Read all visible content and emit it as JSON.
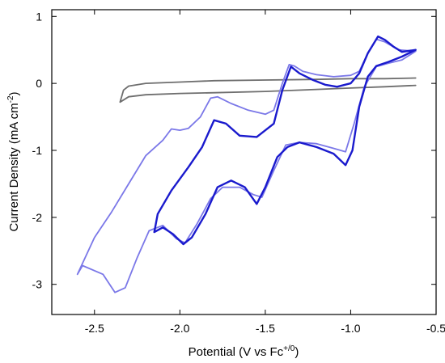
{
  "chart_data": {
    "type": "line",
    "xlabel": {
      "main": "Potential (V vs Fc",
      "sup": "+/0",
      "end": ")"
    },
    "ylabel": {
      "main": "Current Density (mA cm",
      "sup": "-2",
      "end": ")"
    },
    "xlim": [
      -2.75,
      -0.5
    ],
    "ylim": [
      -3.45,
      1.1
    ],
    "x_ticks": [
      -2.5,
      -2.0,
      -1.5,
      -1.0,
      -0.5
    ],
    "x_tick_labels": [
      "-2.5",
      "-2.0",
      "-1.5",
      "-1.0",
      "-0.5"
    ],
    "y_ticks": [
      -3,
      -2,
      -1,
      0,
      1
    ],
    "y_tick_labels": [
      "-3",
      "-2",
      "-1",
      "0",
      "1"
    ],
    "grid": false,
    "legend": "none",
    "series": [
      {
        "color": "#6e6e6e",
        "points": [
          [
            -0.62,
            0.08
          ],
          [
            -0.8,
            0.07
          ],
          [
            -1.0,
            0.07
          ],
          [
            -1.2,
            0.06
          ],
          [
            -1.5,
            0.05
          ],
          [
            -1.8,
            0.04
          ],
          [
            -2.0,
            0.02
          ],
          [
            -2.2,
            0.0
          ],
          [
            -2.3,
            -0.04
          ],
          [
            -2.33,
            -0.1
          ],
          [
            -2.35,
            -0.28
          ],
          [
            -2.3,
            -0.2
          ],
          [
            -2.2,
            -0.17
          ],
          [
            -2.0,
            -0.15
          ],
          [
            -1.8,
            -0.14
          ],
          [
            -1.5,
            -0.12
          ],
          [
            -1.2,
            -0.09
          ],
          [
            -1.0,
            -0.07
          ],
          [
            -0.8,
            -0.05
          ],
          [
            -0.62,
            -0.03
          ]
        ]
      },
      {
        "color": "#7b78e8",
        "points": [
          [
            -0.62,
            0.48
          ],
          [
            -0.72,
            0.5
          ],
          [
            -0.8,
            0.62
          ],
          [
            -0.85,
            0.66
          ],
          [
            -0.9,
            0.45
          ],
          [
            -0.95,
            0.18
          ],
          [
            -1.0,
            0.12
          ],
          [
            -1.1,
            0.1
          ],
          [
            -1.2,
            0.13
          ],
          [
            -1.28,
            0.18
          ],
          [
            -1.33,
            0.26
          ],
          [
            -1.36,
            0.28
          ],
          [
            -1.4,
            0.0
          ],
          [
            -1.45,
            -0.4
          ],
          [
            -1.5,
            -0.46
          ],
          [
            -1.6,
            -0.4
          ],
          [
            -1.7,
            -0.3
          ],
          [
            -1.78,
            -0.2
          ],
          [
            -1.82,
            -0.22
          ],
          [
            -1.88,
            -0.5
          ],
          [
            -1.95,
            -0.67
          ],
          [
            -2.0,
            -0.7
          ],
          [
            -2.05,
            -0.68
          ],
          [
            -2.1,
            -0.85
          ],
          [
            -2.2,
            -1.08
          ],
          [
            -2.3,
            -1.5
          ],
          [
            -2.4,
            -1.92
          ],
          [
            -2.5,
            -2.3
          ],
          [
            -2.6,
            -2.85
          ],
          [
            -2.57,
            -2.72
          ],
          [
            -2.45,
            -2.85
          ],
          [
            -2.38,
            -3.12
          ],
          [
            -2.32,
            -3.05
          ],
          [
            -2.25,
            -2.6
          ],
          [
            -2.18,
            -2.2
          ],
          [
            -2.1,
            -2.12
          ],
          [
            -2.02,
            -2.32
          ],
          [
            -1.97,
            -2.38
          ],
          [
            -1.9,
            -2.1
          ],
          [
            -1.82,
            -1.72
          ],
          [
            -1.75,
            -1.55
          ],
          [
            -1.65,
            -1.55
          ],
          [
            -1.57,
            -1.66
          ],
          [
            -1.52,
            -1.7
          ],
          [
            -1.45,
            -1.3
          ],
          [
            -1.38,
            -0.92
          ],
          [
            -1.3,
            -0.88
          ],
          [
            -1.2,
            -0.9
          ],
          [
            -1.1,
            -0.97
          ],
          [
            -1.03,
            -1.02
          ],
          [
            -0.98,
            -0.6
          ],
          [
            -0.92,
            -0.05
          ],
          [
            -0.85,
            0.25
          ],
          [
            -0.78,
            0.3
          ],
          [
            -0.7,
            0.35
          ],
          [
            -0.62,
            0.48
          ]
        ]
      },
      {
        "color": "#1a1acd",
        "points": [
          [
            -0.62,
            0.5
          ],
          [
            -0.7,
            0.47
          ],
          [
            -0.75,
            0.55
          ],
          [
            -0.8,
            0.65
          ],
          [
            -0.84,
            0.7
          ],
          [
            -0.9,
            0.45
          ],
          [
            -0.95,
            0.15
          ],
          [
            -1.0,
            0.0
          ],
          [
            -1.08,
            -0.05
          ],
          [
            -1.15,
            -0.02
          ],
          [
            -1.22,
            0.05
          ],
          [
            -1.3,
            0.15
          ],
          [
            -1.35,
            0.25
          ],
          [
            -1.4,
            -0.1
          ],
          [
            -1.45,
            -0.6
          ],
          [
            -1.55,
            -0.8
          ],
          [
            -1.65,
            -0.78
          ],
          [
            -1.73,
            -0.6
          ],
          [
            -1.8,
            -0.55
          ],
          [
            -1.87,
            -0.95
          ],
          [
            -1.95,
            -1.25
          ],
          [
            -2.05,
            -1.6
          ],
          [
            -2.13,
            -1.95
          ],
          [
            -2.15,
            -2.22
          ],
          [
            -2.1,
            -2.15
          ],
          [
            -2.04,
            -2.25
          ],
          [
            -1.98,
            -2.4
          ],
          [
            -1.93,
            -2.3
          ],
          [
            -1.85,
            -1.95
          ],
          [
            -1.78,
            -1.55
          ],
          [
            -1.7,
            -1.45
          ],
          [
            -1.62,
            -1.55
          ],
          [
            -1.55,
            -1.8
          ],
          [
            -1.5,
            -1.55
          ],
          [
            -1.43,
            -1.1
          ],
          [
            -1.37,
            -0.95
          ],
          [
            -1.3,
            -0.88
          ],
          [
            -1.2,
            -0.95
          ],
          [
            -1.1,
            -1.05
          ],
          [
            -1.03,
            -1.22
          ],
          [
            -0.99,
            -1.0
          ],
          [
            -0.95,
            -0.35
          ],
          [
            -0.9,
            0.1
          ],
          [
            -0.85,
            0.26
          ],
          [
            -0.78,
            0.32
          ],
          [
            -0.7,
            0.4
          ],
          [
            -0.62,
            0.5
          ]
        ]
      }
    ]
  }
}
